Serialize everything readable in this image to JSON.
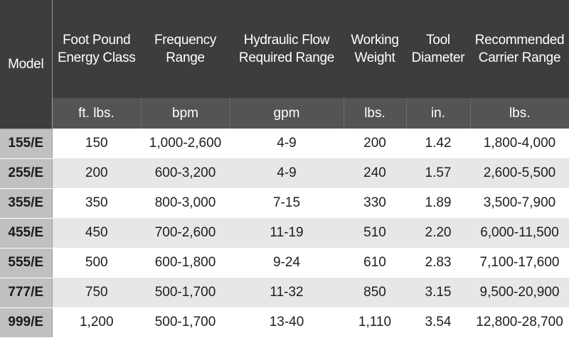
{
  "table": {
    "model_header": "Model",
    "columns": [
      {
        "header": "Foot Pound\nEnergy Class",
        "unit": "ft. lbs."
      },
      {
        "header": "Frequency\nRange",
        "unit": "bpm"
      },
      {
        "header": "Hydraulic Flow\nRequired Range",
        "unit": "gpm"
      },
      {
        "header": "Working\nWeight",
        "unit": "lbs."
      },
      {
        "header": "Tool\nDiameter",
        "unit": "in."
      },
      {
        "header": "Recommended\nCarrier Range",
        "unit": "lbs."
      }
    ],
    "rows": [
      {
        "model": "155/E",
        "cells": [
          "150",
          "1,000-2,600",
          "4-9",
          "200",
          "1.42",
          "1,800-4,000"
        ]
      },
      {
        "model": "255/E",
        "cells": [
          "200",
          "600-3,200",
          "4-9",
          "240",
          "1.57",
          "2,600-5,500"
        ]
      },
      {
        "model": "355/E",
        "cells": [
          "350",
          "800-3,000",
          "7-15",
          "330",
          "1.89",
          "3,500-7,900"
        ]
      },
      {
        "model": "455/E",
        "cells": [
          "450",
          "700-2,600",
          "11-19",
          "510",
          "2.20",
          "6,000-11,500"
        ]
      },
      {
        "model": "555/E",
        "cells": [
          "500",
          "600-1,800",
          "9-24",
          "610",
          "2.83",
          "7,100-17,600"
        ]
      },
      {
        "model": "777/E",
        "cells": [
          "750",
          "500-1,700",
          "11-32",
          "850",
          "3.15",
          "9,500-20,900"
        ]
      },
      {
        "model": "999/E",
        "cells": [
          "1,200",
          "500-1,700",
          "13-40",
          "1,110",
          "3.54",
          "12,800-28,700"
        ]
      }
    ]
  }
}
